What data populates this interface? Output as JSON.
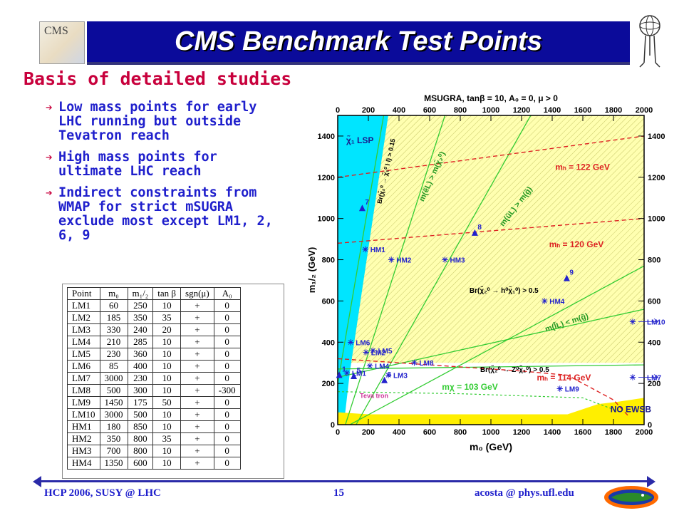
{
  "slide": {
    "title": "CMS Benchmark Test Points",
    "subtitle": "Basis of detailed studies",
    "logo_text": "CMS",
    "bullets": [
      "Low mass points for early LHC running but outside Tevatron reach",
      "High mass points for ultimate LHC reach",
      "Indirect constraints from WMAP for strict mSUGRA exclude  most except LM1, 2, 6, 9"
    ],
    "bullet_arrow": "➔",
    "footer_left": "HCP 2006,    SUSY @ LHC",
    "footer_center": "15",
    "footer_right": "acosta @ phys.ufl.edu",
    "colors": {
      "title_bg": "#0b0b9a",
      "subtitle": "#c8003c",
      "bullet_text": "#1f1fcc",
      "footer": "#1f1fcc"
    }
  },
  "table": {
    "headers": [
      "Point",
      "m₀",
      "m₁/₂",
      "tan β",
      "sgn(μ)",
      "A₀"
    ],
    "rows": [
      [
        "LM1",
        "60",
        "250",
        "10",
        "+",
        "0"
      ],
      [
        "LM2",
        "185",
        "350",
        "35",
        "+",
        "0"
      ],
      [
        "LM3",
        "330",
        "240",
        "20",
        "+",
        "0"
      ],
      [
        "LM4",
        "210",
        "285",
        "10",
        "+",
        "0"
      ],
      [
        "LM5",
        "230",
        "360",
        "10",
        "+",
        "0"
      ],
      [
        "LM6",
        "85",
        "400",
        "10",
        "+",
        "0"
      ],
      [
        "LM7",
        "3000",
        "230",
        "10",
        "+",
        "0"
      ],
      [
        "LM8",
        "500",
        "300",
        "10",
        "+",
        "-300"
      ],
      [
        "LM9",
        "1450",
        "175",
        "50",
        "+",
        "0"
      ],
      [
        "LM10",
        "3000",
        "500",
        "10",
        "+",
        "0"
      ],
      [
        "HM1",
        "180",
        "850",
        "10",
        "+",
        "0"
      ],
      [
        "HM2",
        "350",
        "800",
        "35",
        "+",
        "0"
      ],
      [
        "HM3",
        "700",
        "800",
        "10",
        "+",
        "0"
      ],
      [
        "HM4",
        "1350",
        "600",
        "10",
        "+",
        "0"
      ]
    ]
  },
  "chart_data": {
    "type": "scatter",
    "title": "MSUGRA, tanβ = 10, A₀ = 0, μ > 0",
    "xlabel": "m₀ (GeV)",
    "ylabel": "m₁/₂ (GeV)",
    "xlim": [
      0,
      2000
    ],
    "ylim": [
      0,
      1500
    ],
    "xticks": [
      0,
      200,
      400,
      600,
      800,
      1000,
      1200,
      1400,
      1600,
      1800,
      2000
    ],
    "yticks": [
      0,
      200,
      400,
      600,
      800,
      1000,
      1200,
      1400
    ],
    "lsp_label": "χ̃₁ LSP",
    "no_ewsb_label": "NO EWSB",
    "tevatron_label": "Teva tron",
    "triangles": [
      {
        "label": "1",
        "x": 10,
        "y": 240
      },
      {
        "label": "5",
        "x": 105,
        "y": 235
      },
      {
        "label": "6",
        "x": 305,
        "y": 215
      },
      {
        "label": "7",
        "x": 160,
        "y": 1050
      },
      {
        "label": "8",
        "x": 895,
        "y": 930
      },
      {
        "label": "9",
        "x": 1495,
        "y": 710
      }
    ],
    "stars": [
      {
        "label": "LM1",
        "x": 60,
        "y": 250
      },
      {
        "label": "LM2",
        "x": 185,
        "y": 350
      },
      {
        "label": "LM3",
        "x": 330,
        "y": 240
      },
      {
        "label": "LM4",
        "x": 210,
        "y": 285
      },
      {
        "label": "LM5",
        "x": 230,
        "y": 360
      },
      {
        "label": "LM6",
        "x": 85,
        "y": 400
      },
      {
        "label": "LM8",
        "x": 500,
        "y": 300
      },
      {
        "label": "LM9",
        "x": 1450,
        "y": 175
      },
      {
        "label": "HM1",
        "x": 180,
        "y": 850
      },
      {
        "label": "HM2",
        "x": 350,
        "y": 800
      },
      {
        "label": "HM3",
        "x": 700,
        "y": 800
      },
      {
        "label": "HM4",
        "x": 1350,
        "y": 600
      }
    ],
    "offscale_points": [
      {
        "label": "LM10",
        "y": 500
      },
      {
        "label": "LM7",
        "y": 230
      }
    ],
    "mh_contours": [
      {
        "label": "mₕ = 122 GeV",
        "points": [
          [
            0,
            1200
          ],
          [
            2000,
            1400
          ]
        ]
      },
      {
        "label": "mₕ = 120 GeV",
        "points": [
          [
            0,
            880
          ],
          [
            2000,
            1000
          ]
        ]
      },
      {
        "label": "mₕ = 114 GeV",
        "points": [
          [
            0,
            320
          ],
          [
            400,
            300
          ],
          [
            800,
            280
          ],
          [
            1200,
            260
          ],
          [
            1500,
            240
          ],
          [
            1800,
            120
          ],
          [
            1900,
            40
          ]
        ]
      }
    ],
    "mchi_contour": {
      "label": "mχ = 103 GeV",
      "points": [
        [
          0,
          160
        ],
        [
          800,
          150
        ],
        [
          1600,
          130
        ],
        [
          1850,
          60
        ]
      ]
    },
    "green_lines": [
      {
        "label": "m(ẽL) > m(χ̃₂⁰)",
        "points": [
          [
            50,
            0
          ],
          [
            700,
            1500
          ]
        ]
      },
      {
        "label": "m(ũL) > m(g̃)",
        "points": [
          [
            120,
            0
          ],
          [
            1260,
            1500
          ]
        ]
      },
      {
        "label": "m(l̃L) < m(g̃)",
        "points": [
          [
            80,
            0
          ],
          [
            2000,
            770
          ]
        ]
      },
      {
        "label": "Br(χ̃₂⁰ → χ̃₁⁰ l l) > 0.15",
        "points": [
          [
            0,
            200
          ],
          [
            300,
            1500
          ]
        ]
      },
      {
        "label": "Br(χ̃₂⁰ → h⁰χ̃₁⁰) > 0.5",
        "points": [
          [
            0,
            230
          ],
          [
            2000,
            560
          ]
        ]
      },
      {
        "label": "Br(χ̃₂⁰ → Z⁰χ̃₁⁰) > 0.5",
        "points": [
          [
            0,
            270
          ],
          [
            2000,
            290
          ]
        ]
      }
    ],
    "colors": {
      "lsp": "#00e5ff",
      "ewsb": "#ffef00",
      "hatch": "#ffffb0",
      "green": "#33cc33",
      "red": "#dd2222",
      "points": "#2222cc"
    }
  }
}
